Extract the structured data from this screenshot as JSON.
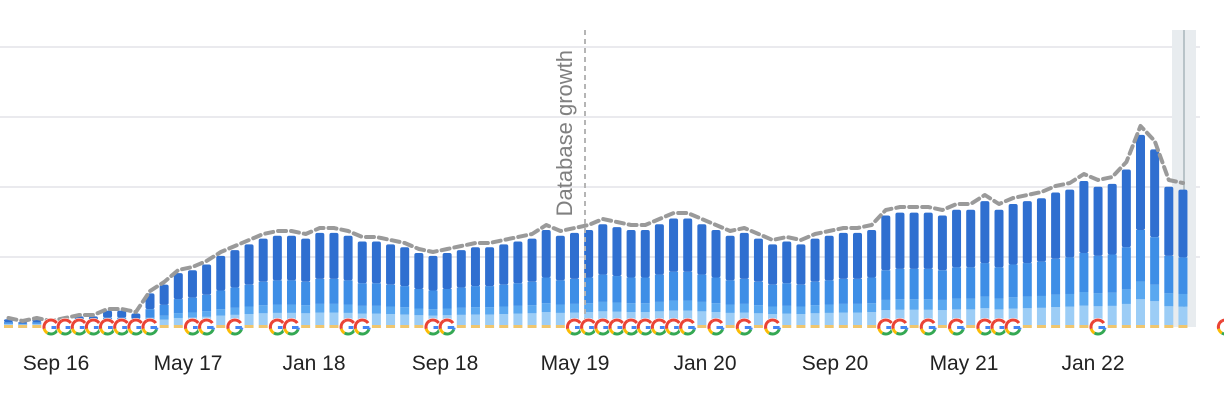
{
  "chart_data": {
    "type": "bar",
    "stacked": true,
    "x_tick_labels": [
      "Sep 16",
      "May 17",
      "Jan 18",
      "Sep 18",
      "May 19",
      "Jan 20",
      "Sep 20",
      "May 21",
      "Jan 22"
    ],
    "annotation": "Database growth",
    "annotation_at": "May 19",
    "legend": "none",
    "grid": "horizontal",
    "y_tick_labels_visible": false,
    "colors": {
      "top": "#2f6fd0",
      "upper_mid": "#3e8ee6",
      "mid": "#5aa8f0",
      "low": "#9ccdf6",
      "base": "#f0c66e",
      "trend_line": "#9a9a9a",
      "grid": "#e3e3e8",
      "annotation_line": "#b5b5b5",
      "highlight": "#e8ecef"
    },
    "totals": [
      2,
      1,
      2,
      1,
      2,
      3,
      3,
      5,
      5,
      4,
      11,
      14,
      18,
      19,
      21,
      24,
      26,
      28,
      30,
      31,
      31,
      30,
      32,
      32,
      31,
      29,
      29,
      28,
      27,
      25,
      24,
      25,
      26,
      27,
      27,
      28,
      29,
      30,
      33,
      31,
      32,
      33,
      35,
      34,
      33,
      33,
      35,
      37,
      37,
      35,
      33,
      31,
      32,
      30,
      28,
      29,
      28,
      30,
      31,
      32,
      32,
      33,
      38,
      39,
      39,
      39,
      38,
      40,
      40,
      43,
      40,
      42,
      43,
      44,
      46,
      47,
      50,
      48,
      49,
      54,
      66,
      61,
      48,
      47
    ],
    "layer_shares": [
      0.13,
      0.09,
      0.26,
      0.48
    ],
    "google_update_positions": [
      3,
      4,
      5,
      6,
      7,
      8,
      9,
      10,
      13,
      14,
      16,
      19,
      20,
      24,
      25,
      30,
      31,
      40,
      41,
      42,
      43,
      44,
      45,
      46,
      47,
      48,
      50,
      52,
      54,
      62,
      63,
      65,
      67,
      69,
      70,
      71,
      77,
      86
    ]
  }
}
